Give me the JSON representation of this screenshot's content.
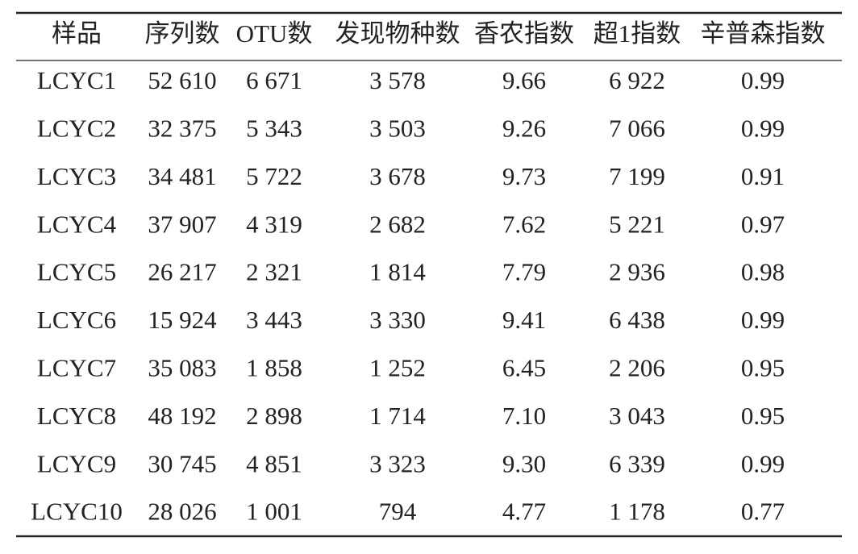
{
  "table": {
    "header": [
      "样品",
      "序列数",
      "OTU数",
      "发现物种数",
      "香农指数",
      "超1指数",
      "辛普森指数"
    ],
    "rows": [
      [
        "LCYC1",
        "52 610",
        "6 671",
        "3 578",
        "9.66",
        "6 922",
        "0.99"
      ],
      [
        "LCYC2",
        "32 375",
        "5 343",
        "3 503",
        "9.26",
        "7 066",
        "0.99"
      ],
      [
        "LCYC3",
        "34 481",
        "5 722",
        "3 678",
        "9.73",
        "7 199",
        "0.91"
      ],
      [
        "LCYC4",
        "37 907",
        "4 319",
        "2 682",
        "7.62",
        "5 221",
        "0.97"
      ],
      [
        "LCYC5",
        "26 217",
        "2 321",
        "1 814",
        "7.79",
        "2 936",
        "0.98"
      ],
      [
        "LCYC6",
        "15 924",
        "3 443",
        "3 330",
        "9.41",
        "6 438",
        "0.99"
      ],
      [
        "LCYC7",
        "35 083",
        "1 858",
        "1 252",
        "6.45",
        "2 206",
        "0.95"
      ],
      [
        "LCYC8",
        "48 192",
        "2 898",
        "1 714",
        "7.10",
        "3 043",
        "0.95"
      ],
      [
        "LCYC9",
        "30 745",
        "4 851",
        "3 323",
        "9.30",
        "6 339",
        "0.99"
      ],
      [
        "LCYC10",
        "28 026",
        "1 001",
        "794",
        "4.77",
        "1 178",
        "0.77"
      ]
    ]
  }
}
